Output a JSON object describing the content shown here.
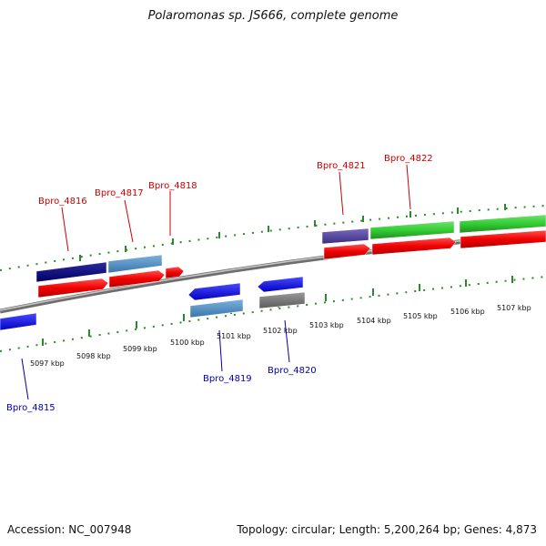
{
  "title": "Polaromonas sp. JS666, complete genome",
  "footer": {
    "accession": "Accession: NC_007948",
    "summary": "Topology: circular; Length: 5,200,264 bp; Genes: 4,873"
  },
  "colors": {
    "forward_label": "#cc0000",
    "reverse_label": "#0000aa",
    "backbone": "#8a8a8a",
    "ticks": "#2a8a2a"
  },
  "kbp_labels": [
    {
      "text": "5097 kbp"
    },
    {
      "text": "5098 kbp"
    },
    {
      "text": "5099 kbp"
    },
    {
      "text": "5100 kbp"
    },
    {
      "text": "5101 kbp"
    },
    {
      "text": "5102 kbp"
    },
    {
      "text": "5103 kbp"
    },
    {
      "text": "5104 kbp"
    },
    {
      "text": "5105 kbp"
    },
    {
      "text": "5106 kbp"
    },
    {
      "text": "5107 kbp"
    }
  ],
  "gene_labels": [
    {
      "text": "Bpro_4815",
      "strand": "reverse"
    },
    {
      "text": "Bpro_4816",
      "strand": "forward"
    },
    {
      "text": "Bpro_4817",
      "strand": "forward"
    },
    {
      "text": "Bpro_4818",
      "strand": "forward"
    },
    {
      "text": "Bpro_4819",
      "strand": "reverse"
    },
    {
      "text": "Bpro_4820",
      "strand": "reverse"
    },
    {
      "text": "Bpro_4821",
      "strand": "forward"
    },
    {
      "text": "Bpro_4822",
      "strand": "forward"
    }
  ]
}
